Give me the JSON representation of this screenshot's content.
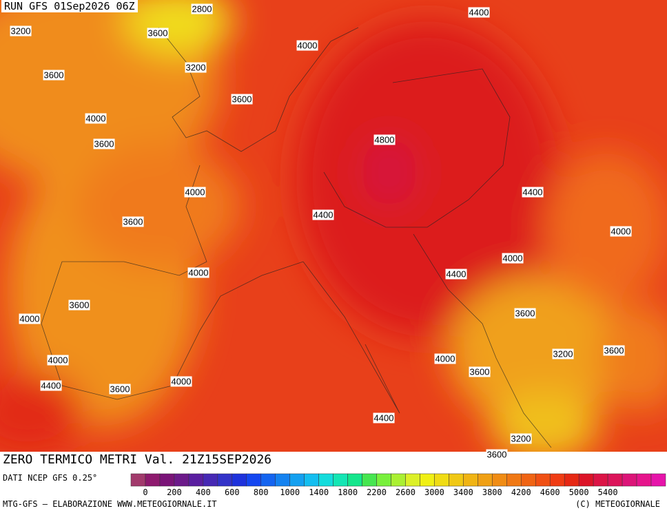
{
  "header": {
    "run": "RUN GFS 01Sep2026 06Z"
  },
  "map": {
    "contour_labels": [
      "2800",
      "4400",
      "3200",
      "3600",
      "4000",
      "3200",
      "3600",
      "3600",
      "4000",
      "3600",
      "4800",
      "4000",
      "4400",
      "3600",
      "4400",
      "4000",
      "4000",
      "4000",
      "4400",
      "3600",
      "4000",
      "3600",
      "3200",
      "3600",
      "4000",
      "4000",
      "3600",
      "4400",
      "4000",
      "3600",
      "4400",
      "3200",
      "3600"
    ]
  },
  "footer": {
    "title": "ZERO TERMICO METRI Val. 21Z15SEP2026",
    "source": "DATI NCEP GFS 0.25°",
    "credit": "MTG-GFS — ELABORAZIONE WWW.METEOGIORNALE.IT",
    "copyright": "(C) METEOGIORNALE"
  },
  "colorbar": {
    "labels": [
      0,
      200,
      400,
      600,
      800,
      1000,
      1400,
      1800,
      2200,
      2600,
      3000,
      3400,
      3800,
      4200,
      4600,
      5000,
      5400
    ],
    "colors": [
      "#a23a6c",
      "#8e1a6e",
      "#7a1478",
      "#6c1a8a",
      "#5a1ea0",
      "#4628b4",
      "#3232c8",
      "#1e32dc",
      "#1446f0",
      "#1464f0",
      "#1482f0",
      "#14a0f0",
      "#14bef0",
      "#14dcdc",
      "#14e6b4",
      "#14e68c",
      "#46e650",
      "#78f03c",
      "#aaf032",
      "#dcf028",
      "#f0f014",
      "#f0dc14",
      "#f0c814",
      "#f0b414",
      "#f0a014",
      "#f08c14",
      "#f07814",
      "#f06414",
      "#f05014",
      "#f03c14",
      "#e62814",
      "#dc1428",
      "#dc1446",
      "#dc145a",
      "#dc1478",
      "#e6148c",
      "#e614aa"
    ]
  }
}
